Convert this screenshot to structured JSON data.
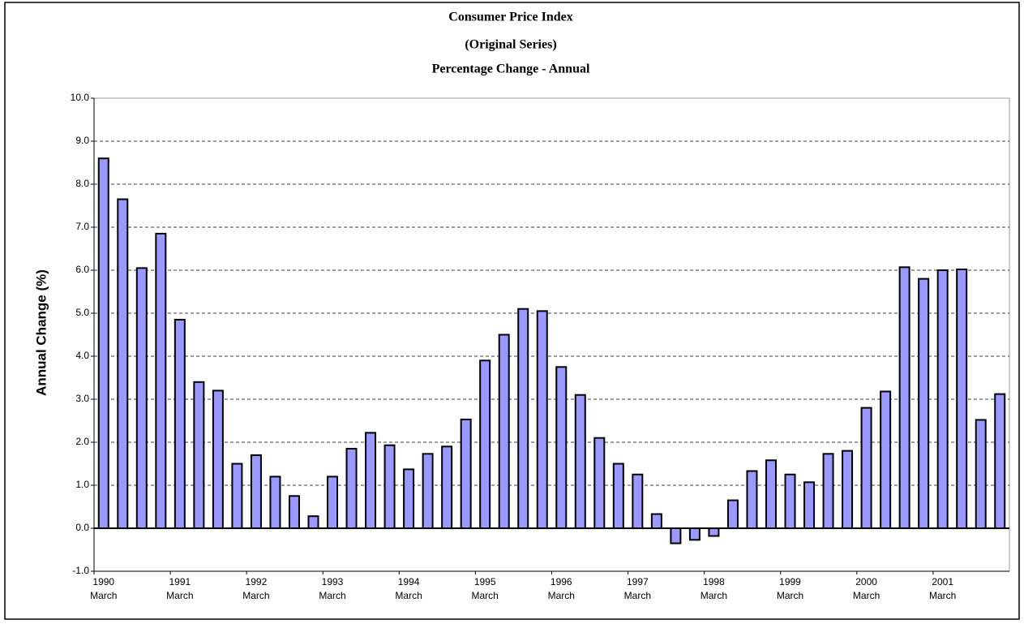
{
  "chart_data": {
    "type": "bar",
    "title": "Consumer Price Index",
    "subtitle": "(Original Series)",
    "subtitle2": "Percentage Change - Annual",
    "y_label": "Annual Change (%)",
    "categories": [
      "1990 March",
      null,
      null,
      null,
      "1991 March",
      null,
      null,
      null,
      "1992 March",
      null,
      null,
      null,
      "1993 March",
      null,
      null,
      null,
      "1994 March",
      null,
      null,
      null,
      "1995 March",
      null,
      null,
      null,
      "1996 March",
      null,
      null,
      null,
      "1997 March",
      null,
      null,
      null,
      "1998 March",
      null,
      null,
      null,
      "1999 March",
      null,
      null,
      null,
      "2000 March",
      null,
      null,
      null,
      "2001 March",
      null,
      null,
      null
    ],
    "values": [
      8.6,
      7.65,
      6.05,
      6.85,
      4.85,
      3.4,
      3.2,
      1.5,
      1.7,
      1.2,
      0.75,
      0.28,
      1.2,
      1.85,
      2.22,
      1.93,
      1.37,
      1.73,
      1.9,
      2.53,
      3.9,
      4.5,
      5.1,
      5.05,
      3.75,
      3.1,
      2.1,
      1.5,
      1.25,
      0.33,
      -0.35,
      -0.27,
      -0.18,
      0.65,
      1.33,
      1.58,
      1.25,
      1.07,
      1.73,
      1.8,
      2.8,
      3.18,
      6.07,
      5.8,
      6.0,
      6.02,
      2.52,
      3.12
    ],
    "color": "#9999ff",
    "ylim": [
      -1,
      10
    ],
    "yticks": [
      {
        "value": -1,
        "label": "-1.0"
      },
      {
        "value": 0,
        "label": "0.0"
      },
      {
        "value": 1,
        "label": "1.0"
      },
      {
        "value": 2,
        "label": "2.0"
      },
      {
        "value": 3,
        "label": "3.0"
      },
      {
        "value": 4,
        "label": "4.0"
      },
      {
        "value": 5,
        "label": "5.0"
      },
      {
        "value": 6,
        "label": "6.0"
      },
      {
        "value": 7,
        "label": "7.0"
      },
      {
        "value": 8,
        "label": "8.0"
      },
      {
        "value": 9,
        "label": "9.0"
      },
      {
        "value": 10,
        "label": "10.0"
      }
    ],
    "grid": true
  }
}
